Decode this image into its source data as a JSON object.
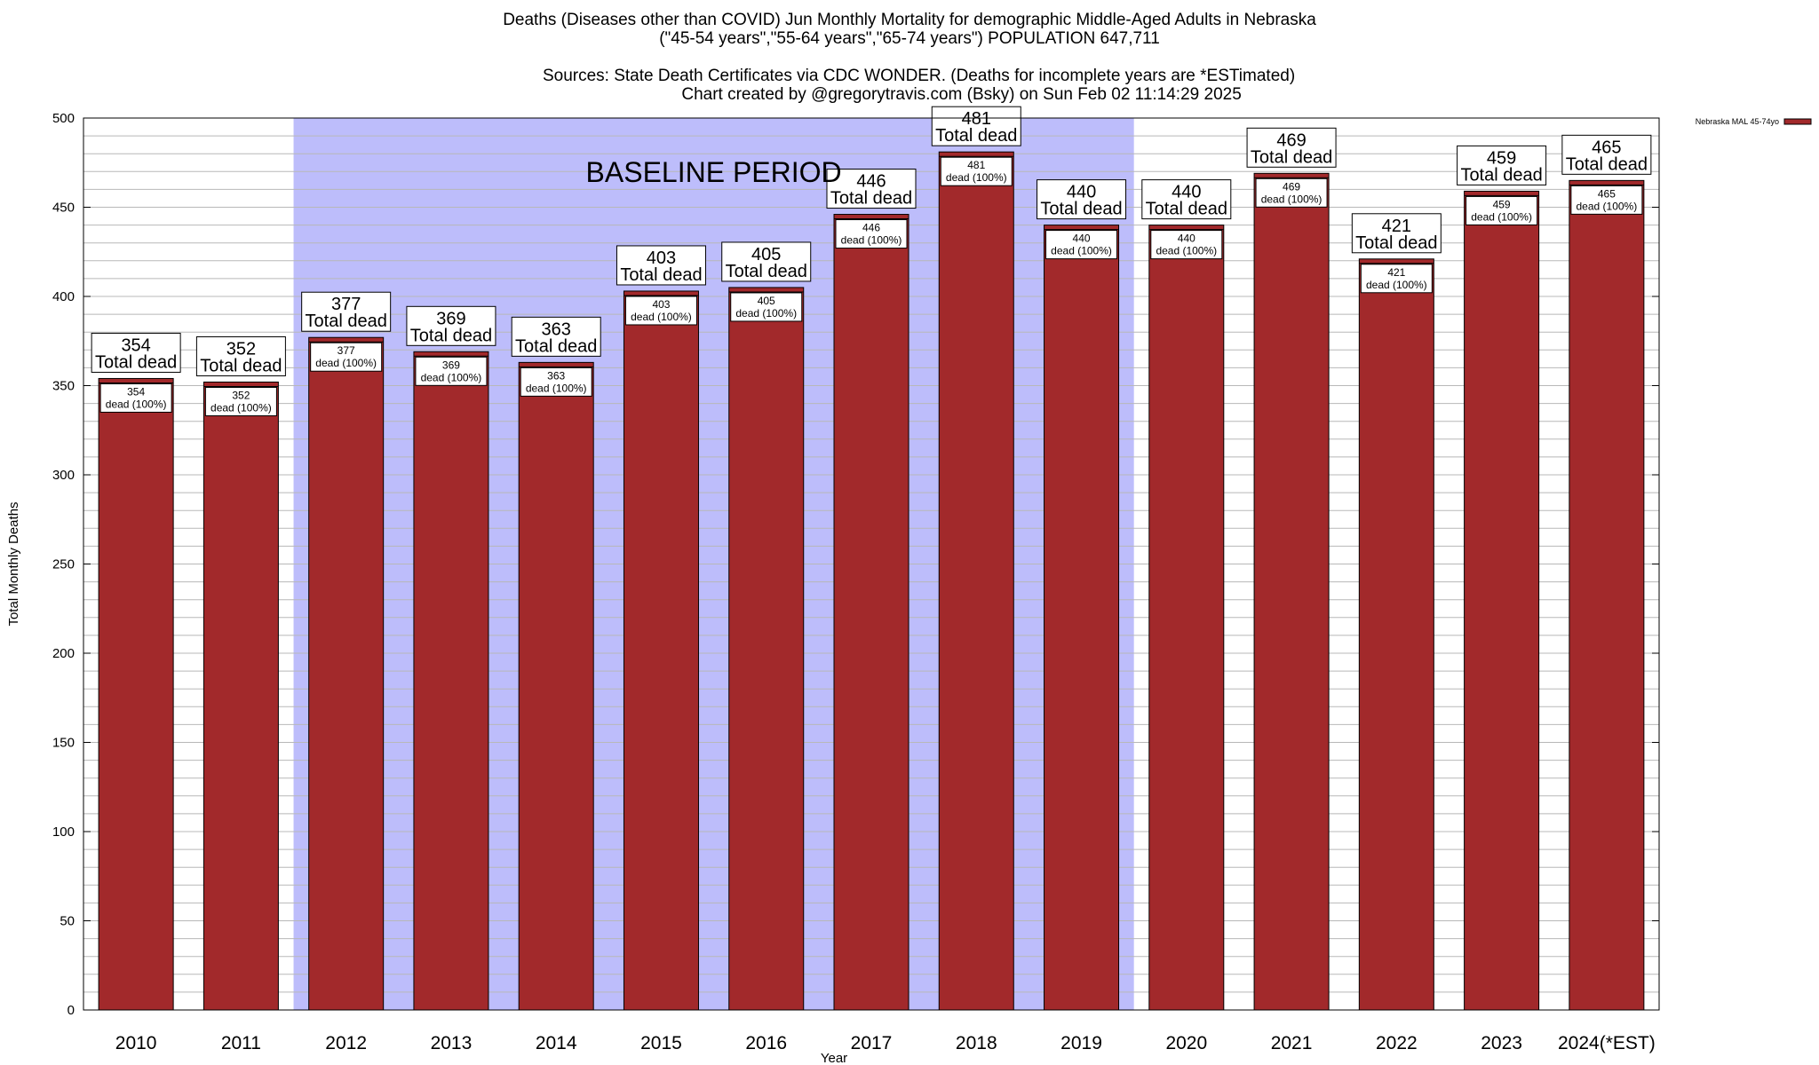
{
  "chart_data": {
    "type": "bar",
    "title": "Deaths (Diseases other than COVID) Jun Monthly Mortality for demographic Middle-Aged Adults in Nebraska",
    "subtitle": "(\"45-54 years\",\"55-64 years\",\"65-74 years\") POPULATION 647,711",
    "sources": "Sources: State Death Certificates via CDC WONDER. (Deaths for incomplete years are *ESTimated)",
    "credit": "Chart created by @gregorytravis.com (Bsky) on Sun Feb 02 11:14:29 2025",
    "xlabel": "Year",
    "ylabel": "Total Monthly Deaths",
    "ylim": [
      0,
      500
    ],
    "yticks": [
      0,
      50,
      100,
      150,
      200,
      250,
      300,
      350,
      400,
      450,
      500
    ],
    "categories": [
      "2010",
      "2011",
      "2012",
      "2013",
      "2014",
      "2015",
      "2016",
      "2017",
      "2018",
      "2019",
      "2020",
      "2021",
      "2022",
      "2023",
      "2024(*EST)"
    ],
    "series": [
      {
        "name": "Nebraska MAL 45-74yo",
        "color": "#a2292b",
        "values": [
          354,
          352,
          377,
          369,
          363,
          403,
          405,
          446,
          481,
          440,
          440,
          469,
          421,
          459,
          465
        ]
      }
    ],
    "total_label_suffix": "Total dead",
    "segment_label_suffix": "dead (100%)",
    "baseline_period": {
      "label": "BASELINE PERIOD",
      "from": "2012",
      "to": "2019",
      "color": "#bdbdfb"
    },
    "grid": true,
    "legend_position": "top-right"
  }
}
